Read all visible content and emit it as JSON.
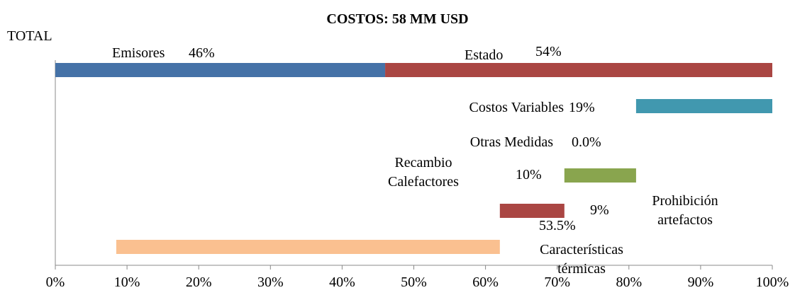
{
  "chart_data": {
    "type": "waterfall-bar",
    "title": "COSTOS: 58 MM USD",
    "total": {
      "label": "TOTAL",
      "series": [
        {
          "name": "Emisores",
          "value": 46,
          "value_label": "46%",
          "color": "#4572a7"
        },
        {
          "name": "Estado",
          "value": 54,
          "value_label": "54%",
          "color": "#aa4643"
        }
      ]
    },
    "categories": [
      "Costos Variables",
      "Otras Medidas",
      "Recambio Calefactores",
      "Prohibición artefactos",
      "Características térmicas"
    ],
    "values": [
      19,
      0.0,
      10,
      9,
      53.5
    ],
    "value_labels": [
      "19%",
      "0.0%",
      "10%",
      "9%",
      "53.5%"
    ],
    "colors": [
      "#4198af",
      "#db843d",
      "#89a54e",
      "#aa4643",
      "#fac090"
    ],
    "xlim": [
      0,
      100
    ],
    "xticks": [
      {
        "value": 0,
        "label": "0%"
      },
      {
        "value": 10,
        "label": "10%"
      },
      {
        "value": 20,
        "label": "20%"
      },
      {
        "value": 30,
        "label": "30%"
      },
      {
        "value": 40,
        "label": "40%"
      },
      {
        "value": 50,
        "label": "50%"
      },
      {
        "value": 60,
        "label": "60%"
      },
      {
        "value": 70,
        "label": "70%"
      },
      {
        "value": 80,
        "label": "80%"
      },
      {
        "value": 90,
        "label": "90%"
      },
      {
        "value": 100,
        "label": "100%"
      }
    ]
  }
}
